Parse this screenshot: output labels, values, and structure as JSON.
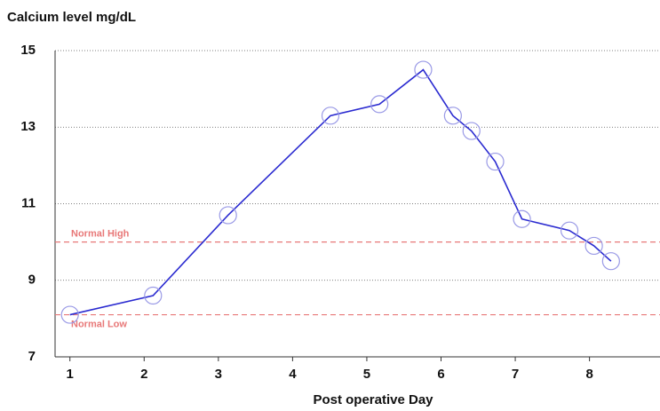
{
  "chart_data": {
    "type": "line",
    "y_label": "Calcium level mg/dL",
    "x_label": "Post operative Day",
    "x": [
      1.0,
      2.12,
      3.13,
      4.51,
      5.17,
      5.76,
      6.16,
      6.41,
      6.73,
      7.09,
      7.73,
      8.06,
      8.29
    ],
    "series": [
      {
        "name": "Calcium",
        "color": "#2a2ad0",
        "marker_color": "#9a9ae6",
        "values": [
          8.1,
          8.6,
          10.7,
          13.3,
          13.6,
          14.5,
          13.3,
          12.9,
          12.1,
          10.6,
          10.3,
          9.9,
          9.5
        ]
      }
    ],
    "xlim": [
      0.8,
      8.95
    ],
    "xticks": [
      1,
      2,
      3,
      4,
      5,
      6,
      7,
      8
    ],
    "ylim": [
      7,
      15
    ],
    "yticks": [
      7,
      9,
      11,
      13,
      15
    ],
    "grid": true,
    "reference_lines": [
      {
        "label": "Normal High",
        "value": 10.0,
        "color": "#e87878"
      },
      {
        "label": "Normal Low",
        "value": 8.1,
        "color": "#e87878"
      }
    ]
  }
}
